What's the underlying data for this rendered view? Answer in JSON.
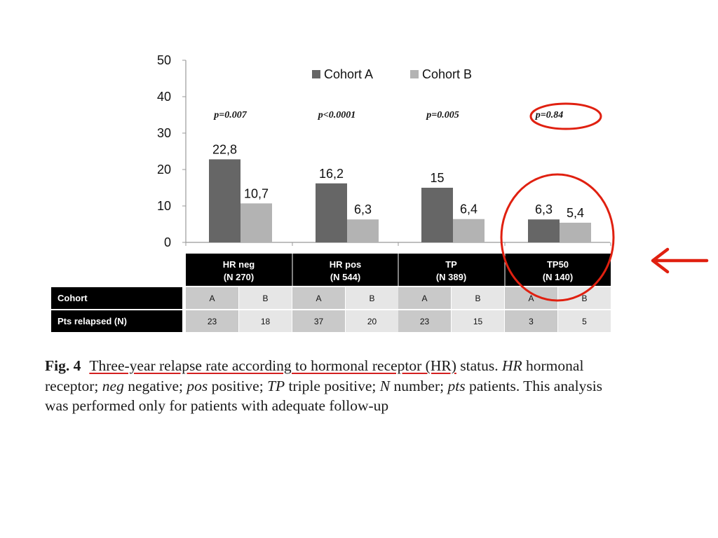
{
  "chart_data": {
    "type": "bar",
    "categories": [
      "HR neg",
      "HR pos",
      "TP",
      "TP50"
    ],
    "category_n": [
      "(N 270)",
      "(N 544)",
      "(N 389)",
      "(N 140)"
    ],
    "series": [
      {
        "name": "Cohort A",
        "values": [
          22.8,
          16.2,
          15,
          6.3
        ],
        "labels": [
          "22,8",
          "16,2",
          "15",
          "6,3"
        ],
        "color": "#666666"
      },
      {
        "name": "Cohort B",
        "values": [
          10.7,
          6.3,
          6.4,
          5.4
        ],
        "labels": [
          "10,7",
          "6,3",
          "6,4",
          "5,4"
        ],
        "color": "#b3b3b3"
      }
    ],
    "p_values": [
      "p=0.007",
      "p<0.0001",
      "p=0.005",
      "p=0.84"
    ],
    "yticks": [
      "0",
      "10",
      "20",
      "30",
      "40",
      "50"
    ],
    "ylim": [
      0,
      50
    ],
    "legend_position": "top-right",
    "grid": false
  },
  "table": {
    "rows": [
      {
        "label": "Cohort",
        "cells": [
          "A",
          "B",
          "A",
          "B",
          "A",
          "B",
          "A",
          "B"
        ]
      },
      {
        "label": "Pts relapsed (N)",
        "cells": [
          "23",
          "18",
          "37",
          "20",
          "23",
          "15",
          "3",
          "5"
        ]
      }
    ]
  },
  "annotations": {
    "highlight_color": "#e02010",
    "arrow": "left-arrow"
  },
  "caption": {
    "fig_label": "Fig. 4",
    "title": "Three-year relapse rate according to hormonal receptor (HR)",
    "t1": "status. ",
    "a1": "HR",
    "t2": " hormonal receptor; ",
    "a2": "neg",
    "t3": " negative; ",
    "a3": "pos",
    "t4": " positive; ",
    "a4": "TP",
    "t5": " triple positive; ",
    "a5": "N",
    "t6": " number; ",
    "a6": "pts",
    "t7": " patients. This analysis was performed only for patients with adequate follow-up"
  }
}
